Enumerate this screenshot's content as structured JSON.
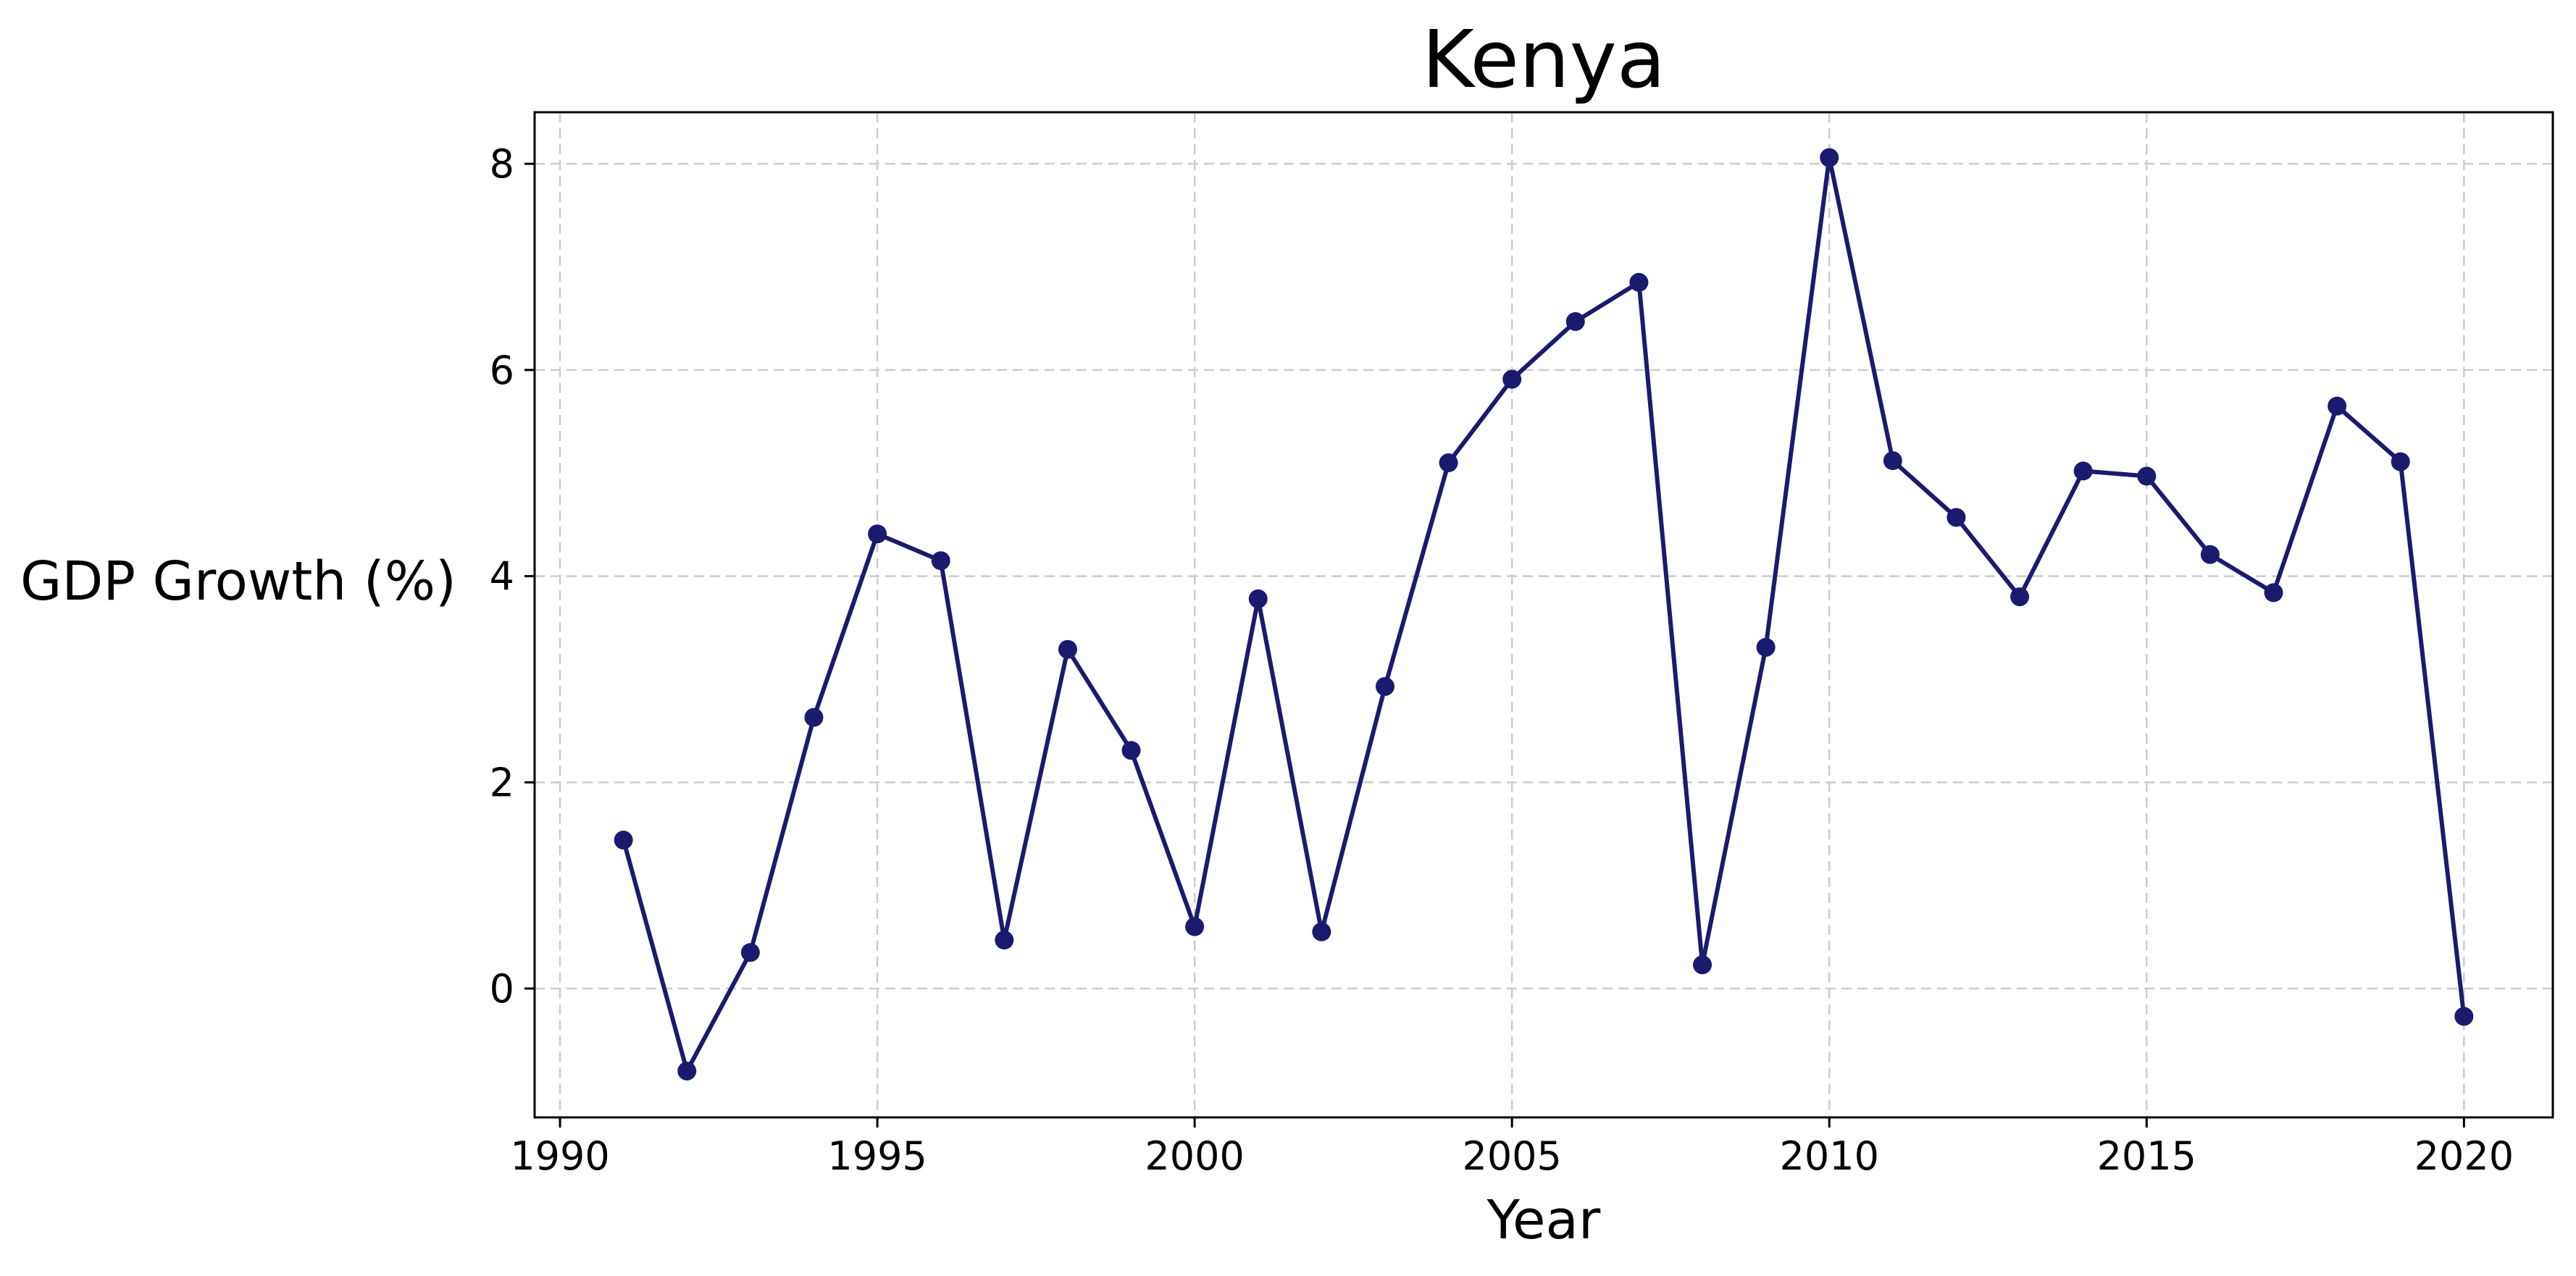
{
  "chart_data": {
    "type": "line",
    "title": "Kenya",
    "xlabel": "Year",
    "ylabel": "GDP Growth (%)",
    "xlim": [
      1989.6,
      2021.4
    ],
    "ylim": [
      -1.25,
      8.5
    ],
    "x_ticks": [
      1990,
      1995,
      2000,
      2005,
      2010,
      2015,
      2020
    ],
    "x_tick_labels": [
      "1990",
      "1995",
      "2000",
      "2005",
      "2010",
      "2015",
      "2020"
    ],
    "y_ticks": [
      0,
      2,
      4,
      6,
      8
    ],
    "y_tick_labels": [
      "0",
      "2",
      "4",
      "6",
      "8"
    ],
    "grid": true,
    "legend": "none",
    "series": [
      {
        "color": "#1a1a6e",
        "marker": "circle",
        "x": [
          1991,
          1992,
          1993,
          1994,
          1995,
          1996,
          1997,
          1998,
          1999,
          2000,
          2001,
          2002,
          2003,
          2004,
          2005,
          2006,
          2007,
          2008,
          2009,
          2010,
          2011,
          2012,
          2013,
          2014,
          2015,
          2016,
          2017,
          2018,
          2019,
          2020
        ],
        "y": [
          1.44,
          -0.8,
          0.35,
          2.63,
          4.41,
          4.15,
          0.47,
          3.29,
          2.31,
          0.6,
          3.78,
          0.55,
          2.93,
          5.1,
          5.91,
          6.47,
          6.85,
          0.23,
          3.31,
          8.06,
          5.12,
          4.57,
          3.8,
          5.02,
          4.97,
          4.21,
          3.84,
          5.65,
          5.11,
          -0.27
        ]
      }
    ]
  }
}
